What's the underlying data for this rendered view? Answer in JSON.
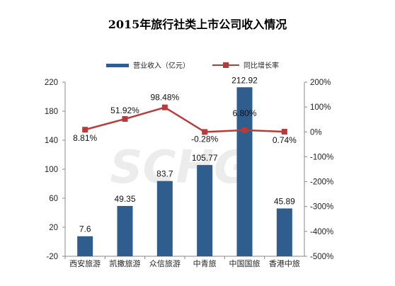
{
  "chart_data": {
    "type": "bar+line",
    "title": "2015年旅行社类上市公司收入情况",
    "categories": [
      "西安旅游",
      "凯撒旅游",
      "众信旅游",
      "中青旅",
      "中国国旅",
      "香港中旅"
    ],
    "series": [
      {
        "name": "营业收入（亿元）",
        "type": "bar",
        "axis": "left",
        "color": "#2e5d8e",
        "values": [
          7.6,
          49.35,
          83.7,
          105.77,
          212.92,
          45.89
        ],
        "labels": [
          "7.6",
          "49.35",
          "83.7",
          "105.77",
          "212.92",
          "45.89"
        ]
      },
      {
        "name": "同比增长率",
        "type": "line",
        "axis": "right",
        "color": "#b83a3a",
        "values": [
          8.81,
          51.92,
          98.48,
          -0.28,
          6.8,
          0.74
        ],
        "labels": [
          "8.81%",
          "51.92%",
          "98.48%",
          "-0.28%",
          "6.80%",
          "0.74%"
        ]
      }
    ],
    "y_left": {
      "min": -20,
      "max": 220,
      "ticks": [
        "-20",
        "20",
        "60",
        "100",
        "140",
        "180",
        "220"
      ]
    },
    "y_right": {
      "min": -500,
      "max": 200,
      "ticks": [
        "-500%",
        "-400%",
        "-300%",
        "-200%",
        "-100%",
        "0%",
        "100%",
        "200%"
      ]
    },
    "legend_position": "top",
    "watermark": "SCHG"
  }
}
